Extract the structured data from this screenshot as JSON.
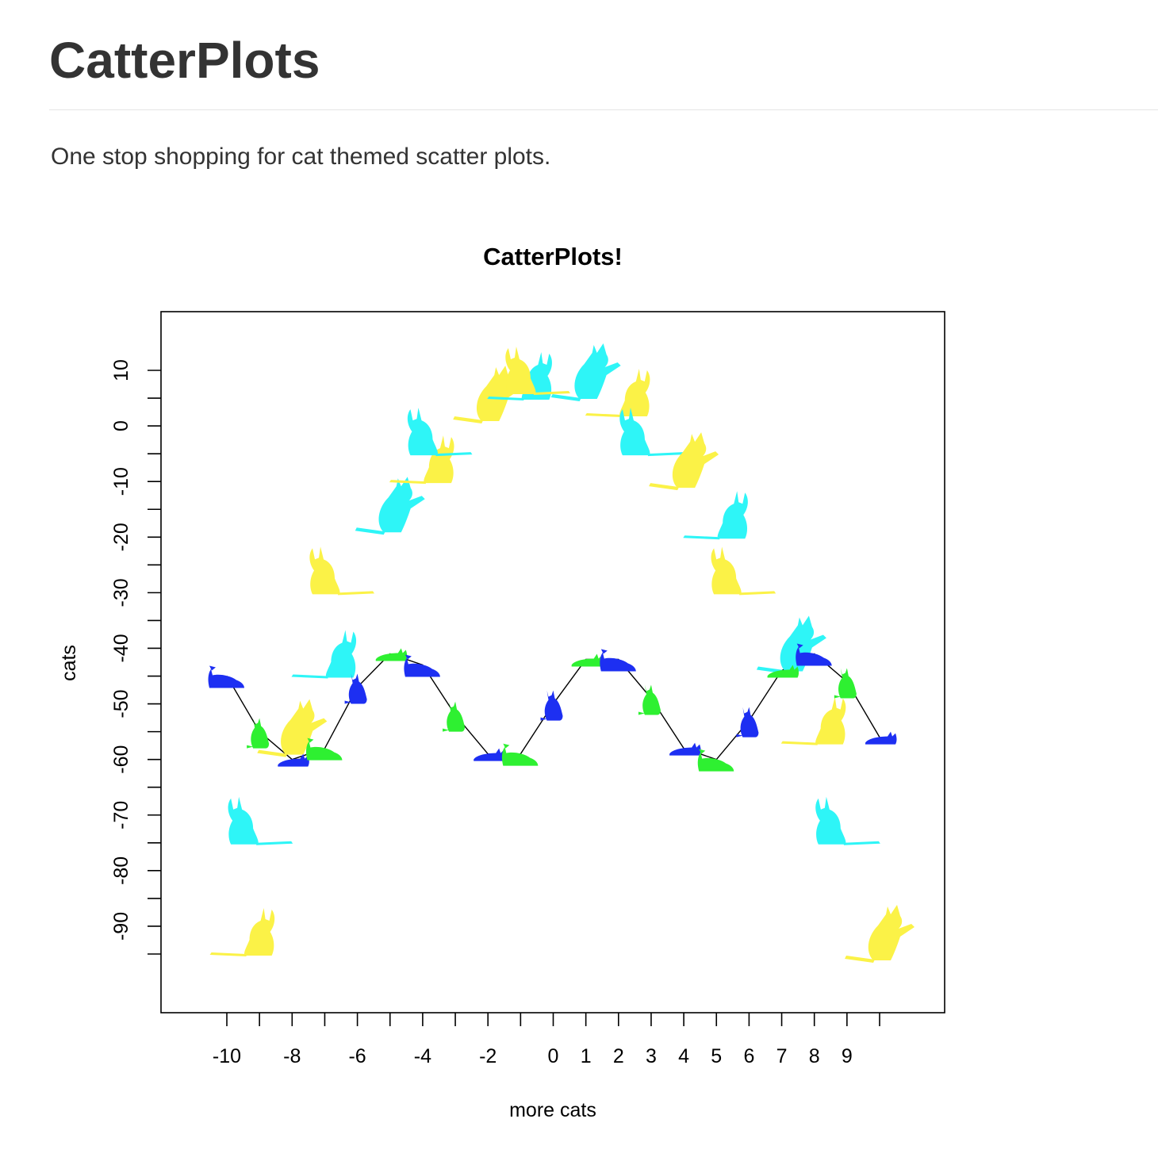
{
  "page": {
    "title": "CatterPlots",
    "tagline": "One stop shopping for cat themed scatter plots."
  },
  "colors": {
    "text": "#333333",
    "cyan": "#2ef5f7",
    "yellow": "#fbf247",
    "blue": "#1d2ff2",
    "green": "#2ef031"
  },
  "chart_data": {
    "type": "scatter",
    "title": "CatterPlots!",
    "xlabel": "more cats",
    "ylabel": "cats",
    "xlim": [
      -12,
      12
    ],
    "ylim": [
      -100,
      20
    ],
    "xticks": [
      -10,
      -9,
      -8,
      -7,
      -6,
      -5,
      -4,
      -3,
      -2,
      -1,
      0,
      1,
      2,
      3,
      4,
      5,
      6,
      7,
      8,
      9,
      10
    ],
    "xtick_labels": [
      "-10",
      "",
      "-8",
      "",
      "-6",
      "",
      "-4",
      "",
      "-2",
      "",
      "0",
      "1",
      "2",
      "3",
      "4",
      "5",
      "6",
      "7",
      "8",
      "9",
      ""
    ],
    "yticks": [
      -95,
      -90,
      -85,
      -80,
      -75,
      -70,
      -65,
      -60,
      -55,
      -50,
      -45,
      -40,
      -35,
      -30,
      -25,
      -20,
      -15,
      -10,
      -5,
      0,
      5,
      10
    ],
    "ytick_labels": {
      "-90": "-90",
      "-80": "-80",
      "-70": "-70",
      "-60": "-60",
      "-50": "-50",
      "-40": "-40",
      "-30": "-30",
      "-20": "-20",
      "-10": "-10",
      "0": "0",
      "10": "10"
    },
    "grid": false,
    "series": [
      {
        "marker": "cat",
        "line": false,
        "points": [
          {
            "x": -9.5,
            "y": -91,
            "color": "yellow",
            "pose": "sit-left"
          },
          {
            "x": -9,
            "y": -71,
            "color": "cyan",
            "pose": "sit-right"
          },
          {
            "x": -8,
            "y": -54,
            "color": "yellow",
            "pose": "paw-left"
          },
          {
            "x": -7,
            "y": -41,
            "color": "cyan",
            "pose": "sit-left"
          },
          {
            "x": -6.5,
            "y": -26,
            "color": "yellow",
            "pose": "sit-right"
          },
          {
            "x": -5,
            "y": -14,
            "color": "cyan",
            "pose": "paw-left"
          },
          {
            "x": -4,
            "y": -6,
            "color": "yellow",
            "pose": "sit-left"
          },
          {
            "x": -3.5,
            "y": -1,
            "color": "cyan",
            "pose": "sit-right"
          },
          {
            "x": -2,
            "y": 6,
            "color": "yellow",
            "pose": "paw-left"
          },
          {
            "x": -1,
            "y": 9,
            "color": "cyan",
            "pose": "sit-left"
          },
          {
            "x": -0.5,
            "y": 10,
            "color": "yellow",
            "pose": "sit-right"
          },
          {
            "x": 1,
            "y": 10,
            "color": "cyan",
            "pose": "paw-left"
          },
          {
            "x": 2,
            "y": 6,
            "color": "yellow",
            "pose": "sit-left"
          },
          {
            "x": 3,
            "y": -1,
            "color": "cyan",
            "pose": "sit-right"
          },
          {
            "x": 4,
            "y": -6,
            "color": "yellow",
            "pose": "paw-left"
          },
          {
            "x": 5,
            "y": -16,
            "color": "cyan",
            "pose": "sit-left"
          },
          {
            "x": 5.8,
            "y": -26,
            "color": "yellow",
            "pose": "sit-right"
          },
          {
            "x": 7.3,
            "y": -39,
            "color": "cyan",
            "pose": "paw-left"
          },
          {
            "x": 8,
            "y": -53,
            "color": "yellow",
            "pose": "sit-left"
          },
          {
            "x": 9,
            "y": -71,
            "color": "cyan",
            "pose": "sit-right"
          },
          {
            "x": 10,
            "y": -91,
            "color": "yellow",
            "pose": "paw-left"
          }
        ]
      },
      {
        "marker": "cat",
        "line": true,
        "points": [
          {
            "x": -10,
            "y": -45,
            "color": "blue",
            "pose": "crouch"
          },
          {
            "x": -9,
            "y": -55,
            "color": "green",
            "pose": "sit-small"
          },
          {
            "x": -8,
            "y": -60,
            "color": "blue",
            "pose": "lie"
          },
          {
            "x": -7,
            "y": -58,
            "color": "green",
            "pose": "crouch"
          },
          {
            "x": -6,
            "y": -47,
            "color": "blue",
            "pose": "sit-small"
          },
          {
            "x": -5,
            "y": -41,
            "color": "green",
            "pose": "lie"
          },
          {
            "x": -4,
            "y": -43,
            "color": "blue",
            "pose": "crouch"
          },
          {
            "x": -3,
            "y": -52,
            "color": "green",
            "pose": "sit-small"
          },
          {
            "x": -2,
            "y": -59,
            "color": "blue",
            "pose": "lie"
          },
          {
            "x": -1,
            "y": -59,
            "color": "green",
            "pose": "crouch"
          },
          {
            "x": 0,
            "y": -50,
            "color": "blue",
            "pose": "sit-small"
          },
          {
            "x": 1,
            "y": -42,
            "color": "green",
            "pose": "lie"
          },
          {
            "x": 2,
            "y": -42,
            "color": "blue",
            "pose": "crouch"
          },
          {
            "x": 3,
            "y": -49,
            "color": "green",
            "pose": "sit-small"
          },
          {
            "x": 4,
            "y": -58,
            "color": "blue",
            "pose": "lie"
          },
          {
            "x": 5,
            "y": -60,
            "color": "green",
            "pose": "crouch"
          },
          {
            "x": 6,
            "y": -53,
            "color": "blue",
            "pose": "sit-small"
          },
          {
            "x": 7,
            "y": -44,
            "color": "green",
            "pose": "lie"
          },
          {
            "x": 8,
            "y": -41,
            "color": "blue",
            "pose": "crouch"
          },
          {
            "x": 9,
            "y": -46,
            "color": "green",
            "pose": "sit-small"
          },
          {
            "x": 10,
            "y": -56,
            "color": "blue",
            "pose": "lie"
          }
        ]
      }
    ]
  }
}
